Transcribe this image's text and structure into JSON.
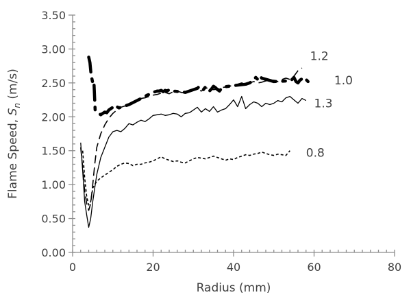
{
  "chart_data": {
    "type": "line",
    "title": "",
    "xlabel": "Radius (mm)",
    "ylabel": {
      "main": "Flame Speed, ",
      "symbol": "S",
      "subscript": "n",
      "unit": " (m/s)"
    },
    "xlim": [
      0,
      80
    ],
    "ylim": [
      0,
      3.5
    ],
    "x_ticks": [
      0,
      20,
      40,
      60,
      80
    ],
    "y_ticks": [
      0.0,
      0.5,
      1.0,
      1.5,
      2.0,
      2.5,
      3.0,
      3.5
    ],
    "x_tick_labels": [
      "0",
      "20",
      "40",
      "60",
      "80"
    ],
    "y_tick_labels": [
      "0.00",
      "0.50",
      "1.00",
      "1.50",
      "2.00",
      "2.50",
      "3.00",
      "3.50"
    ],
    "grid": false,
    "legend": "none (series labelled inline)",
    "series": [
      {
        "name": "0.8",
        "style": "short-dash",
        "color": "#000000",
        "x": [
          2.5,
          3.0,
          3.5,
          4.0,
          4.5,
          5.0,
          6.0,
          7.0,
          8.0,
          9.0,
          10.0,
          11.0,
          12.0,
          13.0,
          14.0,
          15.0,
          16.0,
          17.0,
          18.0,
          19.0,
          20.0,
          21.0,
          22.0,
          23.0,
          24.0,
          25.0,
          26.0,
          27.0,
          28.0,
          29.0,
          30.0,
          31.0,
          32.0,
          33.0,
          34.0,
          35.0,
          36.0,
          37.0,
          38.0,
          39.0,
          40.0,
          41.0,
          42.0,
          43.0,
          44.0,
          45.0,
          46.0,
          47.0,
          48.0,
          49.0,
          50.0,
          51.0,
          52.0,
          53.0,
          54.0
        ],
        "y": [
          1.5,
          1.1,
          0.82,
          0.7,
          0.75,
          0.95,
          1.05,
          1.1,
          1.14,
          1.18,
          1.22,
          1.27,
          1.3,
          1.32,
          1.31,
          1.28,
          1.3,
          1.3,
          1.32,
          1.33,
          1.35,
          1.38,
          1.41,
          1.38,
          1.36,
          1.34,
          1.35,
          1.33,
          1.32,
          1.35,
          1.38,
          1.4,
          1.39,
          1.38,
          1.4,
          1.42,
          1.4,
          1.38,
          1.36,
          1.38,
          1.37,
          1.4,
          1.42,
          1.44,
          1.43,
          1.45,
          1.46,
          1.48,
          1.46,
          1.44,
          1.43,
          1.45,
          1.44,
          1.43,
          1.5
        ]
      },
      {
        "name": "1.3",
        "style": "solid-thin",
        "color": "#000000",
        "x": [
          2.0,
          2.5,
          3.0,
          3.5,
          4.0,
          4.5,
          5.0,
          5.5,
          6.0,
          7.0,
          8.0,
          9.0,
          10.0,
          11.0,
          12.0,
          13.0,
          14.0,
          15.0,
          16.0,
          17.0,
          18.0,
          19.0,
          20.0,
          21.0,
          22.0,
          23.0,
          24.0,
          25.0,
          26.0,
          27.0,
          28.0,
          29.0,
          30.0,
          31.0,
          32.0,
          33.0,
          34.0,
          35.0,
          36.0,
          37.0,
          38.0,
          39.0,
          40.0,
          41.0,
          42.0,
          43.0,
          44.0,
          45.0,
          46.0,
          47.0,
          48.0,
          49.0,
          50.0,
          51.0,
          52.0,
          53.0,
          54.0,
          55.0,
          56.0,
          57.0,
          58.0
        ],
        "y": [
          1.62,
          1.2,
          0.75,
          0.55,
          0.37,
          0.5,
          0.75,
          0.95,
          1.15,
          1.4,
          1.55,
          1.7,
          1.78,
          1.8,
          1.78,
          1.83,
          1.9,
          1.88,
          1.92,
          1.95,
          1.93,
          1.97,
          2.02,
          2.03,
          2.04,
          2.02,
          2.03,
          2.05,
          2.04,
          2.0,
          2.05,
          2.06,
          2.1,
          2.14,
          2.07,
          2.12,
          2.08,
          2.15,
          2.07,
          2.1,
          2.12,
          2.18,
          2.25,
          2.15,
          2.3,
          2.12,
          2.18,
          2.22,
          2.2,
          2.15,
          2.2,
          2.18,
          2.2,
          2.24,
          2.22,
          2.28,
          2.3,
          2.25,
          2.2,
          2.27,
          2.24
        ]
      },
      {
        "name": "1.2",
        "style": "long-dash",
        "color": "#000000",
        "x": [
          2.0,
          2.5,
          3.0,
          3.5,
          4.0,
          4.5,
          5.0,
          5.5,
          6.0,
          7.0,
          8.0,
          9.0,
          10.0,
          11.0,
          12.0,
          13.0,
          14.0,
          15.0,
          16.0,
          17.0,
          18.0,
          19.0,
          20.0,
          21.0,
          22.0,
          23.0,
          24.0,
          25.0,
          26.0,
          27.0,
          28.0,
          29.0,
          30.0,
          31.0,
          32.0,
          33.0,
          34.0,
          35.0,
          36.0,
          37.0,
          38.0,
          39.0,
          40.0,
          41.0,
          42.0,
          43.0,
          44.0,
          45.0,
          46.0,
          47.0,
          48.0,
          49.0,
          50.0,
          51.0,
          52.0,
          53.0,
          54.0,
          55.0,
          56.0,
          57.0
        ],
        "y": [
          1.55,
          1.25,
          0.9,
          0.72,
          0.62,
          0.72,
          1.0,
          1.3,
          1.55,
          1.75,
          1.88,
          1.98,
          2.05,
          2.1,
          2.14,
          2.16,
          2.18,
          2.22,
          2.25,
          2.27,
          2.28,
          2.3,
          2.32,
          2.33,
          2.35,
          2.36,
          2.34,
          2.37,
          2.38,
          2.36,
          2.35,
          2.37,
          2.39,
          2.4,
          2.38,
          2.42,
          2.43,
          2.4,
          2.41,
          2.43,
          2.44,
          2.45,
          2.47,
          2.48,
          2.5,
          2.48,
          2.5,
          2.52,
          2.5,
          2.51,
          2.53,
          2.52,
          2.54,
          2.52,
          2.55,
          2.57,
          2.55,
          2.6,
          2.68,
          2.72
        ]
      },
      {
        "name": "1.0",
        "style": "bold-dash-dot",
        "color": "#000000",
        "x": [
          4.0,
          4.3,
          4.6,
          5.0,
          5.3,
          5.6,
          6.0,
          6.5,
          7.0,
          7.5,
          8.0,
          8.5,
          9.0,
          9.5,
          10.0,
          10.5,
          11.0,
          11.5,
          14.0,
          18.0,
          18.5,
          19.0,
          19.5,
          20.0,
          20.5,
          21.0,
          21.5,
          22.0,
          22.5,
          23.0,
          23.5,
          24.0,
          25.0,
          28.0,
          31.0,
          31.5,
          32.0,
          32.5,
          33.0,
          33.5,
          34.0,
          34.5,
          35.0,
          35.5,
          36.0,
          36.5,
          37.0,
          37.5,
          40.0,
          43.0,
          44.0,
          44.5,
          45.0,
          45.5,
          46.0,
          46.5,
          47.0,
          50.0,
          54.0,
          54.5,
          55.0,
          55.5,
          56.0,
          56.5,
          57.0,
          57.5,
          58.0,
          58.5
        ],
        "y": [
          2.88,
          2.8,
          2.62,
          2.5,
          2.52,
          2.1,
          2.08,
          2.05,
          2.03,
          2.05,
          2.07,
          2.06,
          2.1,
          2.12,
          2.14,
          2.12,
          2.15,
          2.13,
          2.18,
          2.3,
          2.32,
          2.33,
          2.35,
          2.36,
          2.37,
          2.38,
          2.38,
          2.39,
          2.37,
          2.39,
          2.38,
          2.4,
          2.38,
          2.36,
          2.42,
          2.45,
          2.43,
          2.4,
          2.44,
          2.42,
          2.38,
          2.41,
          2.45,
          2.43,
          2.4,
          2.38,
          2.42,
          2.44,
          2.46,
          2.48,
          2.5,
          2.52,
          2.55,
          2.58,
          2.55,
          2.6,
          2.57,
          2.52,
          2.53,
          2.55,
          2.58,
          2.52,
          2.5,
          2.54,
          2.56,
          2.53,
          2.55,
          2.52
        ]
      }
    ],
    "series_labels": [
      {
        "text": "1.2",
        "x": 59.0,
        "y": 2.9
      },
      {
        "text": "1.0",
        "x": 65.0,
        "y": 2.54
      },
      {
        "text": "1.3",
        "x": 60.0,
        "y": 2.2
      },
      {
        "text": "0.8",
        "x": 58.0,
        "y": 1.47
      }
    ]
  }
}
